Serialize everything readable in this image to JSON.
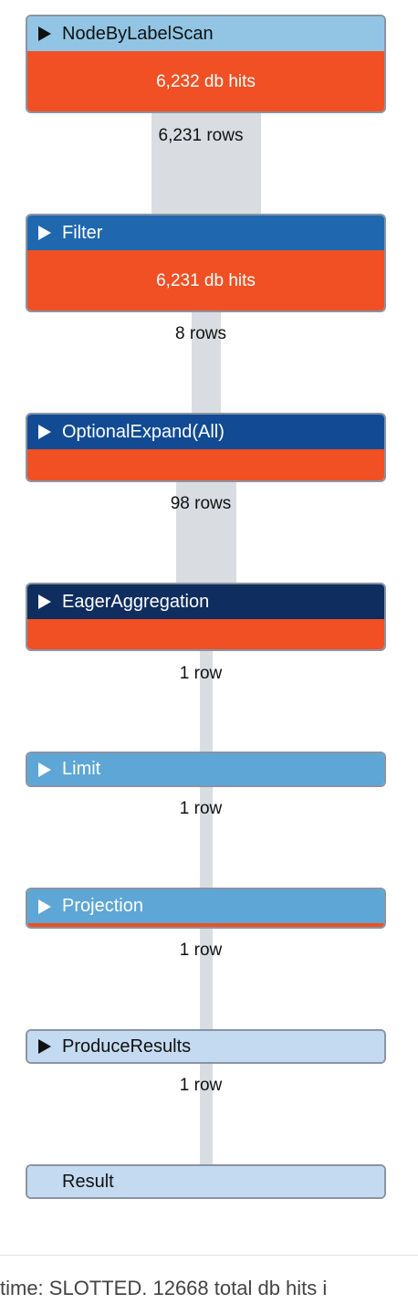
{
  "operators": [
    {
      "name": "NodeByLabelScan",
      "hits": "6,232 db hits",
      "header_color": "#91c5e3",
      "text_color": "#111111"
    },
    {
      "name": "Filter",
      "hits": "6,231 db hits",
      "header_color": "#1f68b0",
      "text_color": "#ffffff"
    },
    {
      "name": "OptionalExpand(All)",
      "hits": "",
      "header_color": "#124b94",
      "text_color": "#ffffff"
    },
    {
      "name": "EagerAggregation",
      "hits": "",
      "header_color": "#0f2d5e",
      "text_color": "#ffffff"
    },
    {
      "name": "Limit",
      "hits": "",
      "header_color": "#5ea6d6",
      "text_color": "#ffffff"
    },
    {
      "name": "Projection",
      "hits": "",
      "header_color": "#5ea6d6",
      "text_color": "#ffffff"
    },
    {
      "name": "ProduceResults",
      "hits": "",
      "header_color": "#c4daf0",
      "text_color": "#111111"
    },
    {
      "name": "Result",
      "hits": "",
      "header_color": "#c4daf0",
      "text_color": "#111111"
    }
  ],
  "row_counts": [
    "6,231 rows",
    "8 rows",
    "98 rows",
    "1 row",
    "1 row",
    "1 row",
    "1 row"
  ],
  "footer": {
    "text": "time: SLOTTED. 12668 total db hits i"
  }
}
